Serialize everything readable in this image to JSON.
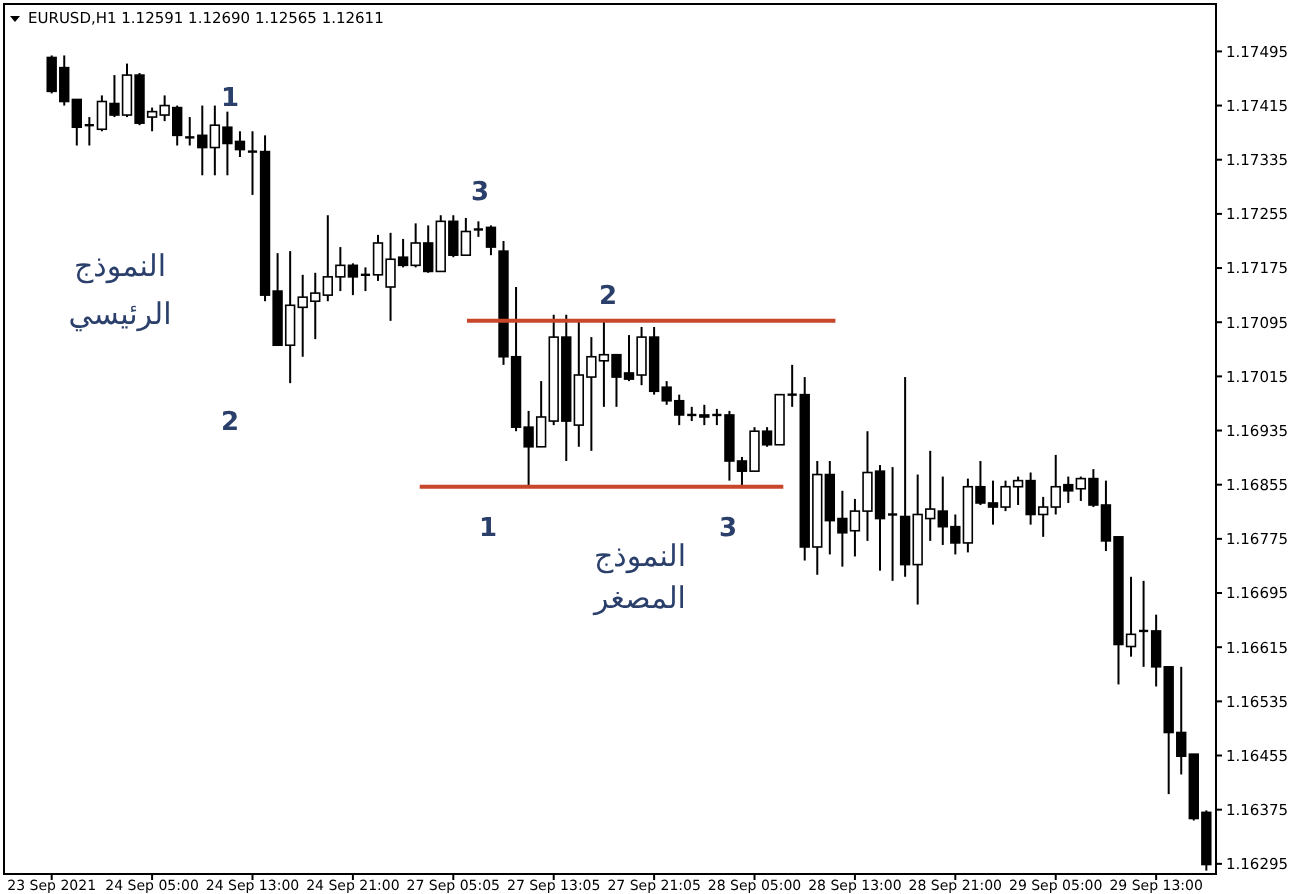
{
  "chart_data": {
    "type": "candlestick",
    "title": "EURUSD,H1  1.12591 1.12690 1.12565 1.12611",
    "categories": [
      "23 Sep 2021",
      null,
      null,
      null,
      null,
      null,
      null,
      null,
      "24 Sep 05:00",
      null,
      null,
      null,
      null,
      null,
      null,
      null,
      "24 Sep 13:00",
      null,
      null,
      null,
      null,
      null,
      null,
      null,
      "24 Sep 21:00",
      null,
      null,
      null,
      null,
      null,
      null,
      null,
      "27 Sep 05:05",
      null,
      null,
      null,
      null,
      null,
      null,
      null,
      "27 Sep 13:05",
      null,
      null,
      null,
      null,
      null,
      null,
      null,
      "27 Sep 21:05",
      null,
      null,
      null,
      null,
      null,
      null,
      null,
      "28 Sep 05:00",
      null,
      null,
      null,
      null,
      null,
      null,
      null,
      "28 Sep 13:00",
      null,
      null,
      null,
      null,
      null,
      null,
      null,
      "28 Sep 21:00",
      null,
      null,
      null,
      null,
      null,
      null,
      null,
      "29 Sep 05:00",
      null,
      null,
      null,
      null,
      null,
      null,
      null,
      "29 Sep 13:00",
      null,
      null,
      null,
      null
    ],
    "ohlc": [
      [
        1.17486,
        1.17489,
        1.17433,
        1.17436
      ],
      [
        1.17471,
        1.17489,
        1.17415,
        1.17421
      ],
      [
        1.17424,
        1.17424,
        1.17356,
        1.17383
      ],
      [
        1.17386,
        1.17398,
        1.17356,
        1.17386
      ],
      [
        1.1738,
        1.1743,
        1.17377,
        1.17421
      ],
      [
        1.17418,
        1.1746,
        1.17398,
        1.17401
      ],
      [
        1.17401,
        1.17477,
        1.17398,
        1.1746
      ],
      [
        1.1746,
        1.17463,
        1.17386,
        1.17389
      ],
      [
        1.17398,
        1.17412,
        1.17377,
        1.17406
      ],
      [
        1.17401,
        1.1743,
        1.17392,
        1.17415
      ],
      [
        1.17412,
        1.17415,
        1.17356,
        1.17371
      ],
      [
        1.17368,
        1.17398,
        1.17356,
        1.17368
      ],
      [
        1.17371,
        1.17415,
        1.17312,
        1.17353
      ],
      [
        1.17353,
        1.17415,
        1.17312,
        1.17386
      ],
      [
        1.17383,
        1.17406,
        1.17312,
        1.17359
      ],
      [
        1.17362,
        1.17377,
        1.17339,
        1.1735
      ],
      [
        1.17347,
        1.17377,
        1.17283,
        1.17347
      ],
      [
        1.17347,
        1.17371,
        1.17126,
        1.17135
      ],
      [
        1.17141,
        1.17197,
        1.17061,
        1.17061
      ],
      [
        1.17061,
        1.172,
        1.17005,
        1.1712
      ],
      [
        1.17117,
        1.17165,
        1.17044,
        1.17132
      ],
      [
        1.17126,
        1.17168,
        1.1707,
        1.17138
      ],
      [
        1.17135,
        1.17253,
        1.17126,
        1.17162
      ],
      [
        1.17162,
        1.17206,
        1.17141,
        1.17179
      ],
      [
        1.17179,
        1.17182,
        1.17135,
        1.17162
      ],
      [
        1.17165,
        1.17176,
        1.17141,
        1.17165
      ],
      [
        1.17165,
        1.17224,
        1.17156,
        1.17212
      ],
      [
        1.17147,
        1.17227,
        1.17097,
        1.17188
      ],
      [
        1.17191,
        1.17218,
        1.17176,
        1.17179
      ],
      [
        1.17179,
        1.17241,
        1.17176,
        1.17212
      ],
      [
        1.17212,
        1.17238,
        1.17168,
        1.1717
      ],
      [
        1.1717,
        1.17253,
        1.1717,
        1.17244
      ],
      [
        1.17244,
        1.17253,
        1.17191,
        1.17194
      ],
      [
        1.17194,
        1.17249,
        1.17194,
        1.17229
      ],
      [
        1.17232,
        1.17244,
        1.17221,
        1.17232
      ],
      [
        1.17235,
        1.17238,
        1.17194,
        1.17206
      ],
      [
        1.172,
        1.17215,
        1.17032,
        1.17044
      ],
      [
        1.17044,
        1.17147,
        1.16934,
        1.1694
      ],
      [
        1.1694,
        1.16964,
        1.16852,
        1.16911
      ],
      [
        1.16911,
        1.17008,
        1.16911,
        1.16955
      ],
      [
        1.16949,
        1.17106,
        1.16943,
        1.17073
      ],
      [
        1.17073,
        1.17106,
        1.1689,
        1.16949
      ],
      [
        1.16943,
        1.17097,
        1.16911,
        1.17017
      ],
      [
        1.17014,
        1.17073,
        1.16905,
        1.17044
      ],
      [
        1.17038,
        1.17097,
        1.1697,
        1.17047
      ],
      [
        1.17047,
        1.17047,
        1.1697,
        1.17014
      ],
      [
        1.1702,
        1.17076,
        1.17008,
        1.17011
      ],
      [
        1.17017,
        1.17088,
        1.17002,
        1.17073
      ],
      [
        1.17073,
        1.17088,
        1.16988,
        1.16993
      ],
      [
        1.16999,
        1.17008,
        1.16973,
        1.16979
      ],
      [
        1.16979,
        1.16988,
        1.16943,
        1.16958
      ],
      [
        1.16958,
        1.1697,
        1.16949,
        1.16958
      ],
      [
        1.16958,
        1.16973,
        1.16943,
        1.16955
      ],
      [
        1.16958,
        1.16967,
        1.16943,
        1.16958
      ],
      [
        1.16958,
        1.16964,
        1.16861,
        1.1689
      ],
      [
        1.1689,
        1.16896,
        1.16852,
        1.16875
      ],
      [
        1.16875,
        1.1694,
        1.16875,
        1.16934
      ],
      [
        1.16934,
        1.1694,
        1.16911,
        1.16914
      ],
      [
        1.16914,
        1.16988,
        1.16914,
        1.16988
      ],
      [
        1.16988,
        1.17032,
        1.1697,
        1.16988
      ],
      [
        1.16988,
        1.17014,
        1.16743,
        1.16763
      ],
      [
        1.16763,
        1.1689,
        1.16722,
        1.1687
      ],
      [
        1.1687,
        1.1689,
        1.16752,
        1.16802
      ],
      [
        1.16805,
        1.16846,
        1.16734,
        1.16784
      ],
      [
        1.16787,
        1.16834,
        1.16749,
        1.16816
      ],
      [
        1.16816,
        1.16934,
        1.16772,
        1.16873
      ],
      [
        1.16875,
        1.16884,
        1.16728,
        1.16805
      ],
      [
        1.16811,
        1.16881,
        1.16713,
        1.16811
      ],
      [
        1.16808,
        1.17014,
        1.16719,
        1.16737
      ],
      [
        1.16737,
        1.1687,
        1.16678,
        1.16811
      ],
      [
        1.16805,
        1.16905,
        1.16772,
        1.16819
      ],
      [
        1.16816,
        1.16867,
        1.16766,
        1.16793
      ],
      [
        1.16793,
        1.16811,
        1.16752,
        1.16769
      ],
      [
        1.16769,
        1.16864,
        1.16755,
        1.16852
      ],
      [
        1.16852,
        1.1689,
        1.16825,
        1.16828
      ],
      [
        1.16828,
        1.16861,
        1.16796,
        1.16822
      ],
      [
        1.16822,
        1.16861,
        1.16816,
        1.16852
      ],
      [
        1.16852,
        1.16867,
        1.16825,
        1.16861
      ],
      [
        1.16861,
        1.16873,
        1.16796,
        1.16811
      ],
      [
        1.16811,
        1.16837,
        1.16778,
        1.16822
      ],
      [
        1.16822,
        1.16899,
        1.16811,
        1.16852
      ],
      [
        1.16855,
        1.16867,
        1.16828,
        1.16846
      ],
      [
        1.16849,
        1.16867,
        1.16831,
        1.16864
      ],
      [
        1.16864,
        1.16878,
        1.16822,
        1.16825
      ],
      [
        1.16825,
        1.16861,
        1.16757,
        1.16772
      ],
      [
        1.16778,
        1.16778,
        1.1656,
        1.16619
      ],
      [
        1.16616,
        1.16719,
        1.16601,
        1.16634
      ],
      [
        1.16639,
        1.16713,
        1.16586,
        1.16639
      ],
      [
        1.16639,
        1.16663,
        1.16557,
        1.16586
      ],
      [
        1.16586,
        1.16586,
        1.16398,
        1.16489
      ],
      [
        1.16489,
        1.16586,
        1.16427,
        1.16454
      ],
      [
        1.16457,
        1.16457,
        1.16359,
        1.16362
      ],
      [
        1.16371,
        1.16374,
        1.16285,
        1.16294
      ]
    ],
    "ylim": [
      1.1628,
      1.17565
    ],
    "yticks": [
      1.17495,
      1.17415,
      1.17335,
      1.17255,
      1.17175,
      1.17095,
      1.17015,
      1.16935,
      1.16855,
      1.16775,
      1.16695,
      1.16615,
      1.16535,
      1.16455,
      1.16375,
      1.16295
    ],
    "ref_lines": [
      {
        "axis": "y",
        "value": 1.17097,
        "color": "#c8462a"
      },
      {
        "axis": "y",
        "value": 1.16852,
        "color": "#c8462a"
      }
    ],
    "annotations": [
      "1",
      "2",
      "3",
      "النموذج",
      "الرئيسي",
      "2",
      "1",
      "3",
      "النموذج",
      "المصغر"
    ]
  }
}
